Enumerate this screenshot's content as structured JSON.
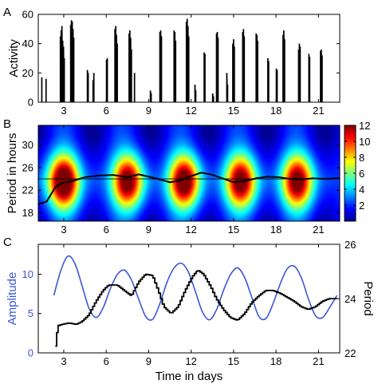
{
  "chart_data": [
    {
      "panel_label": "A",
      "type": "bar",
      "ylabel": "Activity",
      "xlim": [
        1.2,
        22.5
      ],
      "ylim": [
        0,
        60
      ],
      "yticks": [
        0,
        20,
        40,
        60
      ],
      "xticks": [
        3,
        6,
        9,
        12,
        15,
        18,
        21
      ],
      "bursts": [
        {
          "x": 1.45,
          "peaks": [
            17
          ]
        },
        {
          "x": 1.75,
          "peaks": [
            16
          ]
        },
        {
          "x": 2.9,
          "peaks": [
            45,
            49,
            52,
            42,
            38,
            30
          ]
        },
        {
          "x": 3.6,
          "peaks": [
            53,
            56,
            55,
            50,
            44
          ]
        },
        {
          "x": 4.7,
          "peaks": [
            22,
            20
          ]
        },
        {
          "x": 5.1,
          "peaks": [
            15,
            20
          ]
        },
        {
          "x": 6.05,
          "peaks": [
            29,
            30
          ]
        },
        {
          "x": 6.7,
          "peaks": [
            50,
            52,
            46,
            40
          ]
        },
        {
          "x": 7.7,
          "peaks": [
            47,
            49,
            44,
            36
          ]
        },
        {
          "x": 8.0,
          "peaks": [
            20
          ]
        },
        {
          "x": 9.15,
          "peaks": [
            8,
            6
          ]
        },
        {
          "x": 9.85,
          "peaks": [
            48,
            49,
            45
          ]
        },
        {
          "x": 10.85,
          "peaks": [
            49,
            48,
            42
          ]
        },
        {
          "x": 11.75,
          "peaks": [
            55,
            57,
            52,
            45
          ]
        },
        {
          "x": 12.3,
          "peaks": [
            12,
            8
          ]
        },
        {
          "x": 12.95,
          "peaks": [
            34,
            33
          ]
        },
        {
          "x": 13.55,
          "peaks": [
            6,
            4
          ]
        },
        {
          "x": 13.85,
          "peaks": [
            47,
            48,
            44
          ]
        },
        {
          "x": 14.55,
          "peaks": [
            20,
            12
          ]
        },
        {
          "x": 15.0,
          "peaks": [
            40,
            43,
            38
          ]
        },
        {
          "x": 15.7,
          "peaks": [
            48,
            50,
            45
          ]
        },
        {
          "x": 16.65,
          "peaks": [
            47,
            46,
            42
          ]
        },
        {
          "x": 17.45,
          "peaks": [
            30,
            28
          ]
        },
        {
          "x": 18.05,
          "peaks": [
            23,
            22
          ]
        },
        {
          "x": 18.55,
          "peaks": [
            46,
            49,
            43
          ]
        },
        {
          "x": 19.65,
          "peaks": [
            36,
            40,
            38
          ]
        },
        {
          "x": 20.35,
          "peaks": [
            33,
            31
          ]
        },
        {
          "x": 21.2,
          "peaks": [
            35,
            36,
            32
          ]
        }
      ]
    },
    {
      "panel_label": "B",
      "type": "heatmap",
      "ylabel": "Period in hours",
      "xlim": [
        1.2,
        22.5
      ],
      "ylim": [
        16.5,
        33.5
      ],
      "yticks": [
        18,
        22,
        26,
        30
      ],
      "xticks": [
        3,
        6,
        9,
        12,
        15,
        18,
        21
      ],
      "colorbar": {
        "min": 0,
        "max": 12,
        "ticks": [
          2,
          4,
          6,
          8,
          10,
          12
        ]
      },
      "reference_line": 24,
      "power_peaks": [
        {
          "x": 3.0,
          "y": 23.5,
          "power": 12.5
        },
        {
          "x": 7.5,
          "y": 23.5,
          "power": 11.0
        },
        {
          "x": 11.5,
          "y": 23.5,
          "power": 11.5
        },
        {
          "x": 15.5,
          "y": 23.5,
          "power": 11.0
        },
        {
          "x": 19.5,
          "y": 23.5,
          "power": 11.0
        }
      ],
      "ridge_x": [
        1.2,
        1.8,
        2.4,
        2.9,
        3.6,
        4.5,
        5.5,
        6.5,
        7.5,
        8.3,
        9.0,
        9.8,
        10.5,
        11.2,
        12.0,
        12.7,
        13.4,
        14.2,
        15.0,
        15.8,
        16.6,
        17.4,
        18.2,
        19.0,
        19.8,
        20.6,
        21.4,
        22.2,
        22.5
      ],
      "ridge_y": [
        19.5,
        20.0,
        22.5,
        23.3,
        23.6,
        24.3,
        24.6,
        24.7,
        24.3,
        24.8,
        24.4,
        23.9,
        23.4,
        23.7,
        24.5,
        25.1,
        24.8,
        24.1,
        23.4,
        23.6,
        24.1,
        24.4,
        24.3,
        24.0,
        23.9,
        24.1,
        24.0,
        24.1,
        24.1
      ]
    },
    {
      "panel_label": "C",
      "type": "line",
      "xlabel": "Time in days",
      "ylabel": "Amplitude",
      "ylabel_right": "Period",
      "xlim": [
        1.2,
        22.5
      ],
      "ylim": [
        0,
        13.8
      ],
      "ylim_right": [
        22,
        26
      ],
      "yticks": [
        0,
        5,
        10
      ],
      "yticks_right": [
        22,
        24,
        26
      ],
      "xticks": [
        3,
        6,
        9,
        12,
        15,
        18,
        21
      ],
      "series": [
        {
          "name": "Amplitude",
          "axis": "left",
          "color": "#3b57d8",
          "x": [
            2.3,
            2.8,
            3.3,
            3.8,
            4.3,
            4.8,
            5.3,
            5.8,
            6.3,
            6.8,
            7.3,
            7.8,
            8.3,
            8.8,
            9.3,
            9.8,
            10.3,
            10.8,
            11.3,
            11.8,
            12.3,
            12.8,
            13.3,
            13.8,
            14.3,
            14.8,
            15.3,
            15.8,
            16.3,
            16.8,
            17.3,
            17.8,
            18.3,
            18.8,
            19.3,
            19.8,
            20.3,
            20.8,
            21.3,
            21.8,
            22.3
          ],
          "y": [
            7.3,
            10.5,
            12.3,
            11.3,
            8.5,
            5.6,
            4.5,
            5.8,
            8.2,
            10.0,
            10.5,
            9.2,
            6.8,
            4.6,
            4.3,
            6.3,
            9.0,
            10.8,
            11.4,
            10.3,
            7.8,
            5.2,
            4.2,
            5.5,
            8.0,
            10.0,
            10.8,
            9.5,
            7.0,
            4.6,
            4.4,
            6.3,
            8.8,
            10.7,
            11.0,
            9.5,
            6.8,
            4.7,
            4.5,
            5.8,
            7.3
          ]
        },
        {
          "name": "Period",
          "axis": "right",
          "color": "#000000",
          "x": [
            2.4,
            2.6,
            2.9,
            3.4,
            3.9,
            4.3,
            4.8,
            5.3,
            5.8,
            6.2,
            6.8,
            7.3,
            7.8,
            8.3,
            8.8,
            9.3,
            9.7,
            10.1,
            10.6,
            11.1,
            11.6,
            12.1,
            12.5,
            12.9,
            13.4,
            13.8,
            14.3,
            14.8,
            15.3,
            15.8,
            16.3,
            16.8,
            17.3,
            17.8,
            18.3,
            18.8,
            19.3,
            19.8,
            20.3,
            20.8,
            21.3,
            21.8,
            22.3
          ],
          "y": [
            22.0,
            23.0,
            23.05,
            23.1,
            23.05,
            23.15,
            23.4,
            23.9,
            24.3,
            24.5,
            24.5,
            24.3,
            24.1,
            24.6,
            24.9,
            24.85,
            24.3,
            23.7,
            23.45,
            23.7,
            24.3,
            24.8,
            25.05,
            24.9,
            24.45,
            24.0,
            23.6,
            23.3,
            23.2,
            23.45,
            23.85,
            24.1,
            24.3,
            24.3,
            24.2,
            24.05,
            23.9,
            23.7,
            23.6,
            23.7,
            23.9,
            24.0,
            24.0
          ]
        }
      ]
    }
  ]
}
